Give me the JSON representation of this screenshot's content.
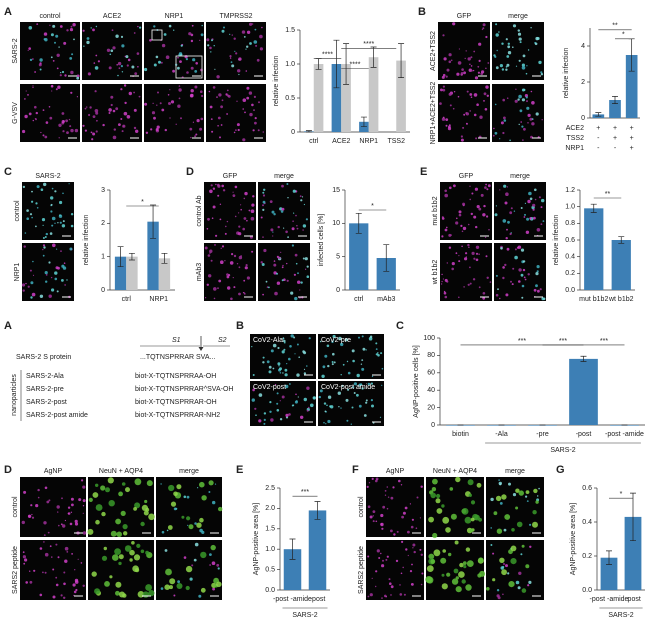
{
  "panels": [
    {
      "letter": "A",
      "columns": [
        "control",
        "ACE2",
        "NRP1",
        "TMPRSS2"
      ],
      "rows": [
        "SARS-2",
        "G-VSV"
      ]
    },
    {
      "letter": "B",
      "columns": [
        "GFP",
        "merge"
      ],
      "rows": [
        "ACE2+TSS2",
        "NRP1+ACE2+TSS2"
      ]
    },
    {
      "letter": "C",
      "columns": [
        "SARS-2"
      ],
      "rows": [
        "control",
        "NRP1"
      ]
    },
    {
      "letter": "D",
      "columns": [
        "GFP",
        "merge"
      ],
      "rows": [
        "control Ab",
        "mAb3"
      ]
    },
    {
      "letter": "E",
      "columns": [
        "GFP",
        "merge"
      ],
      "rows": [
        "mut b1b2",
        "wt b1b2"
      ]
    },
    {
      "letter": "A",
      "s1": "S1",
      "s2": "S2",
      "protein_label": "SARS-2 S protein",
      "protein_seq": "...TQTNSPRRAR SVA...",
      "group_label": "nanoparticles",
      "items": [
        {
          "name": "SARS-2-Ala",
          "seq": "biot-X-TQTNSPRRAA-OH"
        },
        {
          "name": "SARS-2-pre",
          "seq": "biot-X-TQTNSPRRAR^SVA-OH"
        },
        {
          "name": "SARS-2-post",
          "seq": "biot-X-TQTNSPRRAR-OH"
        },
        {
          "name": "SARS-2-post amide",
          "seq": "biot-X-TQTNSPRRAR-NH2"
        }
      ]
    },
    {
      "letter": "B",
      "tiles": [
        "CoV2-Ala",
        "CoV2-pre",
        "CoV2-post",
        "CoV2-post amide"
      ]
    },
    {
      "letter": "C"
    },
    {
      "letter": "D",
      "columns": [
        "AgNP",
        "NeuN + AQP4",
        "merge"
      ],
      "rows": [
        "control",
        "SARS2 peptide"
      ]
    },
    {
      "letter": "E"
    },
    {
      "letter": "F",
      "columns": [
        "AgNP",
        "NeuN + AQP4",
        "merge"
      ],
      "rows": [
        "control",
        "SARS2 peptide"
      ]
    },
    {
      "letter": "G"
    }
  ],
  "chart_data": [
    {
      "type": "bar",
      "y_label": "relative infection",
      "categories": [
        "ctrl",
        "ACE2",
        "NRP1",
        "TSS2"
      ],
      "series": [
        {
          "color": "#3d7fb5",
          "values": [
            0.01,
            1.0,
            0.15,
            null
          ],
          "errors": [
            0.01,
            0.35,
            0.07,
            null
          ]
        },
        {
          "color": "#c8c8c8",
          "values": [
            1.0,
            1.0,
            1.1,
            1.05
          ],
          "errors": [
            0.08,
            0.3,
            0.15,
            0.25
          ]
        }
      ],
      "ylim": [
        0,
        1.5
      ],
      "yticks": [
        0,
        0.5,
        {
          "value": 1,
          "label": "1.0"
        },
        1.5
      ],
      "annotations": [
        "****",
        "****",
        "****"
      ]
    },
    {
      "type": "bar",
      "y_label": "relative infection",
      "categories": [
        null,
        null,
        null
      ],
      "series": [
        {
          "color": "#3d7fb5",
          "values": [
            0.2,
            1.0,
            3.5
          ],
          "errors": [
            0.1,
            0.2,
            0.9
          ]
        }
      ],
      "ylim": [
        0,
        5
      ],
      "yticks": [
        0,
        2,
        4
      ],
      "annotations": [
        "*",
        "**"
      ],
      "condition_rows": [
        {
          "name": "ACE2",
          "marks": [
            "+",
            "+",
            "+"
          ]
        },
        {
          "name": "TSS2",
          "marks": [
            "-",
            "+",
            "+"
          ]
        },
        {
          "name": "NRP1",
          "marks": [
            "-",
            "-",
            "+"
          ]
        }
      ]
    },
    {
      "type": "bar",
      "y_label": "relative infection",
      "categories": [
        "ctrl",
        "NRP1"
      ],
      "series": [
        {
          "color": "#3d7fb5",
          "values": [
            1.0,
            2.05
          ],
          "errors": [
            0.3,
            0.5
          ]
        },
        {
          "color": "#c8c8c8",
          "values": [
            1.0,
            0.95
          ],
          "errors": [
            0.1,
            0.15
          ]
        }
      ],
      "ylim": [
        0,
        3
      ],
      "yticks": [
        0,
        1,
        2,
        3
      ],
      "annotations": [
        "*"
      ]
    },
    {
      "type": "bar",
      "y_label": "infected cells [%]",
      "categories": [
        "ctrl",
        "mAb3"
      ],
      "series": [
        {
          "color": "#3d7fb5",
          "values": [
            10,
            4.8
          ],
          "errors": [
            1.5,
            2.0
          ]
        }
      ],
      "ylim": [
        0,
        15
      ],
      "yticks": [
        0,
        5,
        10,
        15
      ],
      "annotations": [
        "*"
      ]
    },
    {
      "type": "bar",
      "y_label": "relative infection",
      "categories": [
        "mut b1b2",
        "wt b1b2"
      ],
      "series": [
        {
          "color": "#3d7fb5",
          "values": [
            0.98,
            0.6
          ],
          "errors": [
            0.05,
            0.04
          ]
        }
      ],
      "ylim": [
        0,
        1.2
      ],
      "yticks": [
        {
          "value": 0,
          "label": "0.0"
        },
        0.2,
        0.4,
        0.6,
        0.8,
        {
          "value": 1,
          "label": "1.0"
        },
        1.2
      ],
      "annotations": [
        "**"
      ]
    },
    {
      "type": "bar",
      "y_label": "AgNP-positive cells [%]",
      "categories": [
        "biotin",
        "-Ala",
        "-pre",
        "-post",
        "-post -amide"
      ],
      "series": [
        {
          "color": "#3d7fb5",
          "values": [
            0,
            0,
            0,
            76,
            0
          ],
          "errors": [
            0,
            0,
            0,
            3,
            0
          ]
        }
      ],
      "ylim": [
        0,
        100
      ],
      "yticks": [
        0,
        20,
        40,
        60,
        80,
        100
      ],
      "group_label": "SARS-2",
      "annotations": [
        "***",
        "***",
        "***"
      ]
    },
    {
      "type": "bar",
      "y_label": "AgNP-positive area [%]",
      "categories": [
        "-post -amide",
        "-post"
      ],
      "series": [
        {
          "color": "#3d7fb5",
          "values": [
            1.0,
            1.95
          ],
          "errors": [
            0.25,
            0.22
          ]
        }
      ],
      "ylim": [
        0,
        2.5
      ],
      "yticks": [
        {
          "value": 0,
          "label": "0.0"
        },
        0.5,
        {
          "value": 1,
          "label": "1.0"
        },
        1.5,
        {
          "value": 2,
          "label": "2.0"
        },
        2.5
      ],
      "group_label": "SARS-2",
      "annotations": [
        "***"
      ]
    },
    {
      "type": "bar",
      "y_label": "AgNP-positive area [%]",
      "categories": [
        "-post -amide",
        "-post"
      ],
      "series": [
        {
          "color": "#3d7fb5",
          "values": [
            0.19,
            0.43
          ],
          "errors": [
            0.04,
            0.14
          ]
        }
      ],
      "ylim": [
        0,
        0.6
      ],
      "yticks": [
        {
          "value": 0,
          "label": "0.0"
        },
        0.2,
        0.4,
        0.6
      ],
      "group_label": "SARS-2",
      "annotations": [
        "*"
      ]
    }
  ]
}
